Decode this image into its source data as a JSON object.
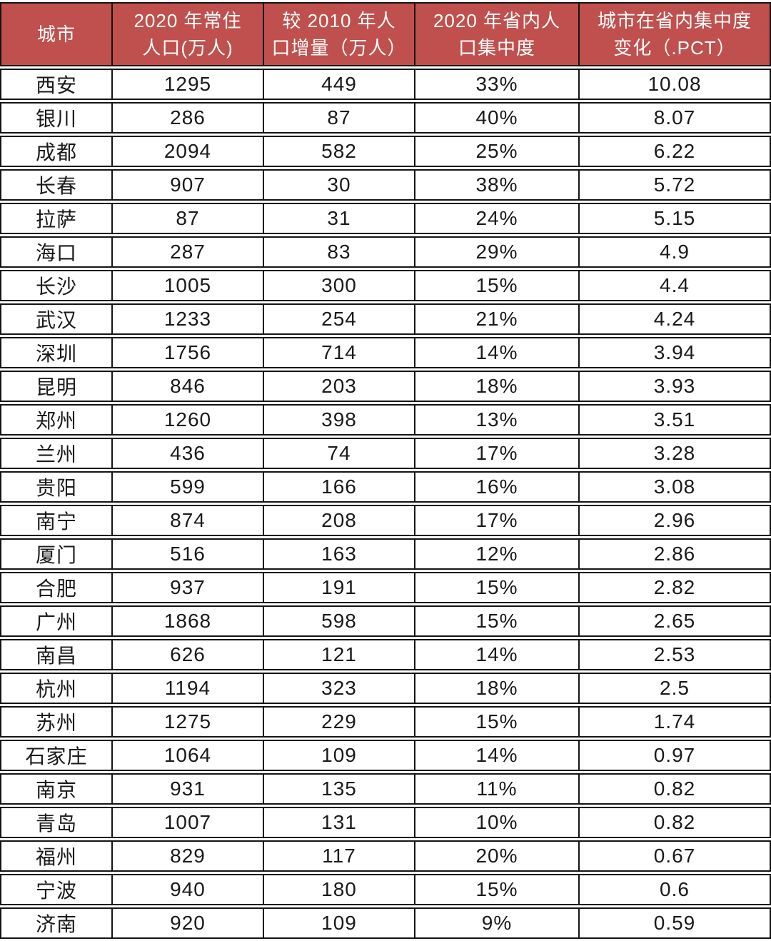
{
  "colors": {
    "header_bg": "#C0504D",
    "header_text": "#FFFFFF",
    "border": "#141414",
    "text": "#1A1A1A",
    "row_bg": "#FFFFFF"
  },
  "chart_data": {
    "type": "table",
    "columns": [
      "城市",
      "2020 年常住人口(万人)",
      "较 2010 年人口增量（万人）",
      "2020 年省内人口集中度",
      "城市在省内集中度变化（.PCT）"
    ],
    "header_lines": [
      [
        "城市"
      ],
      [
        "2020 年常住",
        "人口(万人)"
      ],
      [
        "较 2010 年人",
        "口增量（万人）"
      ],
      [
        "2020 年省内人",
        "口集中度"
      ],
      [
        "城市在省内集中度",
        "变化（.PCT）"
      ]
    ],
    "rows": [
      [
        "西安",
        "1295",
        "449",
        "33%",
        "10.08"
      ],
      [
        "银川",
        "286",
        "87",
        "40%",
        "8.07"
      ],
      [
        "成都",
        "2094",
        "582",
        "25%",
        "6.22"
      ],
      [
        "长春",
        "907",
        "30",
        "38%",
        "5.72"
      ],
      [
        "拉萨",
        "87",
        "31",
        "24%",
        "5.15"
      ],
      [
        "海口",
        "287",
        "83",
        "29%",
        "4.9"
      ],
      [
        "长沙",
        "1005",
        "300",
        "15%",
        "4.4"
      ],
      [
        "武汉",
        "1233",
        "254",
        "21%",
        "4.24"
      ],
      [
        "深圳",
        "1756",
        "714",
        "14%",
        "3.94"
      ],
      [
        "昆明",
        "846",
        "203",
        "18%",
        "3.93"
      ],
      [
        "郑州",
        "1260",
        "398",
        "13%",
        "3.51"
      ],
      [
        "兰州",
        "436",
        "74",
        "17%",
        "3.28"
      ],
      [
        "贵阳",
        "599",
        "166",
        "16%",
        "3.08"
      ],
      [
        "南宁",
        "874",
        "208",
        "17%",
        "2.96"
      ],
      [
        "厦门",
        "516",
        "163",
        "12%",
        "2.86"
      ],
      [
        "合肥",
        "937",
        "191",
        "15%",
        "2.82"
      ],
      [
        "广州",
        "1868",
        "598",
        "15%",
        "2.65"
      ],
      [
        "南昌",
        "626",
        "121",
        "14%",
        "2.53"
      ],
      [
        "杭州",
        "1194",
        "323",
        "18%",
        "2.5"
      ],
      [
        "苏州",
        "1275",
        "229",
        "15%",
        "1.74"
      ],
      [
        "石家庄",
        "1064",
        "109",
        "14%",
        "0.97"
      ],
      [
        "南京",
        "931",
        "135",
        "11%",
        "0.82"
      ],
      [
        "青岛",
        "1007",
        "131",
        "10%",
        "0.82"
      ],
      [
        "福州",
        "829",
        "117",
        "20%",
        "0.67"
      ],
      [
        "宁波",
        "940",
        "180",
        "15%",
        "0.6"
      ],
      [
        "济南",
        "920",
        "109",
        "9%",
        "0.59"
      ]
    ]
  }
}
